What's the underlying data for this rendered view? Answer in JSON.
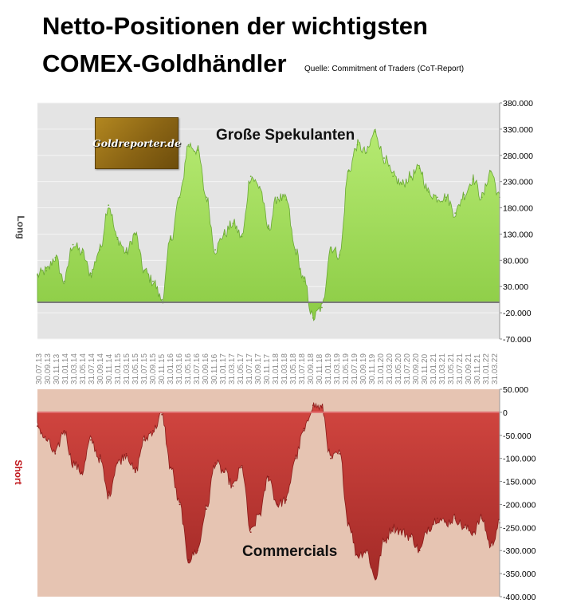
{
  "title_line1": "Netto-Positionen der wichtigsten",
  "title_line2": "COMEX-Goldhändler",
  "source": "Quelle: Commitment of Traders (CoT-Report)",
  "logo_text": "Goldreporter.de",
  "colors": {
    "upper_bg": "#e4e4e4",
    "lower_bg": "#e6c4b2",
    "long_fill": "#99d850",
    "long_dark": "#6aa834",
    "short_fill": "#c23a35",
    "short_dark": "#8a1c1a",
    "short_label": "#c0161b",
    "long_label": "#444444"
  },
  "x_tick_labels": [
    "30.07.13",
    "30.09.13",
    "30.11.13",
    "31.01.14",
    "31.03.14",
    "31.05.14",
    "31.07.14",
    "30.09.14",
    "30.11.14",
    "31.01.15",
    "31.03.15",
    "31.05.15",
    "31.07.15",
    "30.09.15",
    "30.11.15",
    "31.01.16",
    "31.03.16",
    "31.05.16",
    "31.07.16",
    "30.09.16",
    "30.11.16",
    "31.01.17",
    "31.03.17",
    "31.05.17",
    "31.07.17",
    "30.09.17",
    "30.11.17",
    "31.01.18",
    "31.03.18",
    "31.05.18",
    "31.07.18",
    "30.09.18",
    "30.11.18",
    "31.01.19",
    "31.03.19",
    "31.05.19",
    "31.07.19",
    "30.09.19",
    "30.11.19",
    "31.01.20",
    "31.03.20",
    "31.05.20",
    "31.07.20",
    "30.09.20",
    "30.11.20",
    "31.01.21",
    "31.03.21",
    "31.05.21",
    "31.07.21",
    "30.09.21",
    "30.11.21",
    "31.01.22",
    "31.03.22"
  ],
  "chart_data": [
    {
      "type": "area",
      "annotation": "Große Spekulanten",
      "ylabel": "Long",
      "ylim": [
        -70000,
        380000
      ],
      "y_tick_labels": [
        "380.000",
        "330.000",
        "280.000",
        "230.000",
        "180.000",
        "130.000",
        "80.000",
        "30.000",
        "-20.000",
        "-70.000"
      ],
      "y_ticks": [
        380000,
        330000,
        280000,
        230000,
        180000,
        130000,
        80000,
        30000,
        -20000,
        -70000
      ],
      "x_index": [
        0,
        1,
        2,
        3,
        4,
        5,
        6,
        7,
        8,
        9,
        10,
        11,
        12,
        13,
        14,
        15,
        16,
        17,
        18,
        19,
        20,
        21,
        22,
        23,
        24,
        25,
        26,
        27,
        28,
        29,
        30,
        31,
        32,
        33,
        34,
        35,
        36,
        37,
        38,
        39,
        40,
        41,
        42,
        43,
        44,
        45,
        46,
        47,
        48,
        49,
        50,
        51,
        52
      ],
      "values": [
        52000,
        60000,
        85000,
        40000,
        110000,
        95000,
        55000,
        100000,
        185000,
        120000,
        95000,
        130000,
        60000,
        40000,
        5000,
        120000,
        200000,
        300000,
        290000,
        200000,
        100000,
        130000,
        150000,
        125000,
        240000,
        220000,
        140000,
        200000,
        195000,
        100000,
        40000,
        -30000,
        -10000,
        105000,
        90000,
        250000,
        300000,
        285000,
        325000,
        275000,
        240000,
        225000,
        240000,
        255000,
        210000,
        200000,
        200000,
        170000,
        205000,
        235000,
        200000,
        250000,
        200000
      ]
    },
    {
      "type": "area",
      "annotation": "Commercials",
      "ylabel": "Short",
      "ylim": [
        -400000,
        50000
      ],
      "y_tick_labels": [
        "50.000",
        "0",
        "-50.000",
        "-100.000",
        "-150.000",
        "-200.000",
        "-250.000",
        "-300.000",
        "-350.000",
        "-400.000"
      ],
      "y_ticks": [
        50000,
        0,
        -50000,
        -100000,
        -150000,
        -200000,
        -250000,
        -300000,
        -350000,
        -400000
      ],
      "x_index": [
        0,
        1,
        2,
        3,
        4,
        5,
        6,
        7,
        8,
        9,
        10,
        11,
        12,
        13,
        14,
        15,
        16,
        17,
        18,
        19,
        20,
        21,
        22,
        23,
        24,
        25,
        26,
        27,
        28,
        29,
        30,
        31,
        32,
        33,
        34,
        35,
        36,
        37,
        38,
        39,
        40,
        41,
        42,
        43,
        44,
        45,
        46,
        47,
        48,
        49,
        50,
        51,
        52
      ],
      "values": [
        -30000,
        -60000,
        -90000,
        -40000,
        -110000,
        -130000,
        -60000,
        -100000,
        -180000,
        -110000,
        -90000,
        -130000,
        -60000,
        -40000,
        -5000,
        -120000,
        -200000,
        -320000,
        -300000,
        -210000,
        -110000,
        -130000,
        -160000,
        -120000,
        -260000,
        -220000,
        -140000,
        -200000,
        -190000,
        -100000,
        -40000,
        15000,
        10000,
        -100000,
        -90000,
        -240000,
        -310000,
        -300000,
        -360000,
        -280000,
        -250000,
        -260000,
        -270000,
        -300000,
        -250000,
        -230000,
        -240000,
        -230000,
        -250000,
        -260000,
        -230000,
        -290000,
        -240000
      ]
    }
  ]
}
